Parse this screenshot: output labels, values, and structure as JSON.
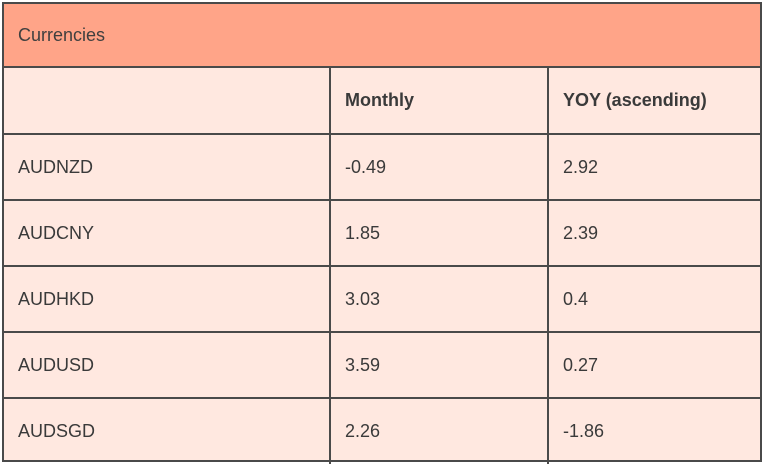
{
  "table": {
    "title": "Currencies",
    "columns": [
      "",
      "Monthly",
      "YOY (ascending)"
    ],
    "rows": [
      {
        "pair": "AUDNZD",
        "monthly": "-0.49",
        "yoy": "2.92"
      },
      {
        "pair": "AUDCNY",
        "monthly": "1.85",
        "yoy": "2.39"
      },
      {
        "pair": "AUDHKD",
        "monthly": "3.03",
        "yoy": "0.4"
      },
      {
        "pair": "AUDUSD",
        "monthly": "3.59",
        "yoy": "0.27"
      },
      {
        "pair": "AUDSGD",
        "monthly": "2.26",
        "yoy": "-1.86"
      }
    ]
  },
  "colors": {
    "header_background": "#ffa488",
    "body_background": "#ffe8e0",
    "border": "#4a4a4a",
    "text": "#3a3a3a"
  }
}
